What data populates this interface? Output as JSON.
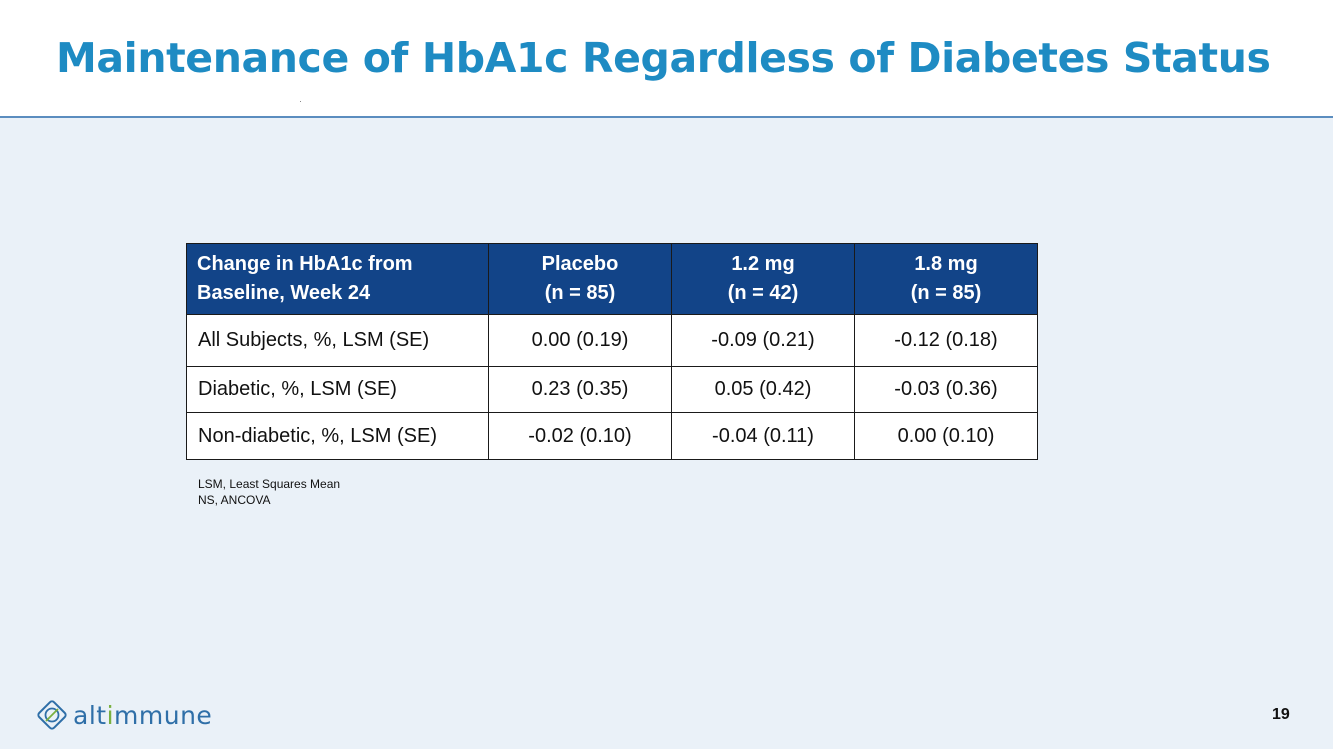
{
  "slide": {
    "title": "Maintenance of HbA1c Regardless of Diabetes Status",
    "page_number": "19"
  },
  "table": {
    "headers": [
      {
        "line1": "Change in HbA1c from",
        "line2": "Baseline, Week 24"
      },
      {
        "line1": "Placebo",
        "line2": "(n = 85)"
      },
      {
        "line1": "1.2 mg",
        "line2": "(n = 42)"
      },
      {
        "line1": "1.8 mg",
        "line2": "(n = 85)"
      }
    ],
    "rows": [
      {
        "label": "All Subjects, %, LSM (SE)",
        "values": [
          "0.00 (0.19)",
          "-0.09 (0.21)",
          "-0.12 (0.18)"
        ]
      },
      {
        "label": "Diabetic, %, LSM (SE)",
        "values": [
          "0.23 (0.35)",
          "0.05 (0.42)",
          "-0.03 (0.36)"
        ]
      },
      {
        "label": "Non-diabetic, %, LSM (SE)",
        "values": [
          "-0.02 (0.10)",
          "-0.04 (0.11)",
          "0.00 (0.10)"
        ]
      }
    ]
  },
  "footnotes": [
    "LSM, Least Squares Mean",
    "NS, ANCOVA"
  ],
  "logo": {
    "text_part1": "alt",
    "text_accent": "i",
    "text_part2": "mmune",
    "icon": "altimmune-diamond-icon",
    "colors": {
      "blue": "#2f6fa8",
      "green": "#7ab040"
    }
  },
  "colors": {
    "title": "#1e8bc3",
    "table_header_bg": "#124488",
    "background": "#eaf1f8"
  }
}
